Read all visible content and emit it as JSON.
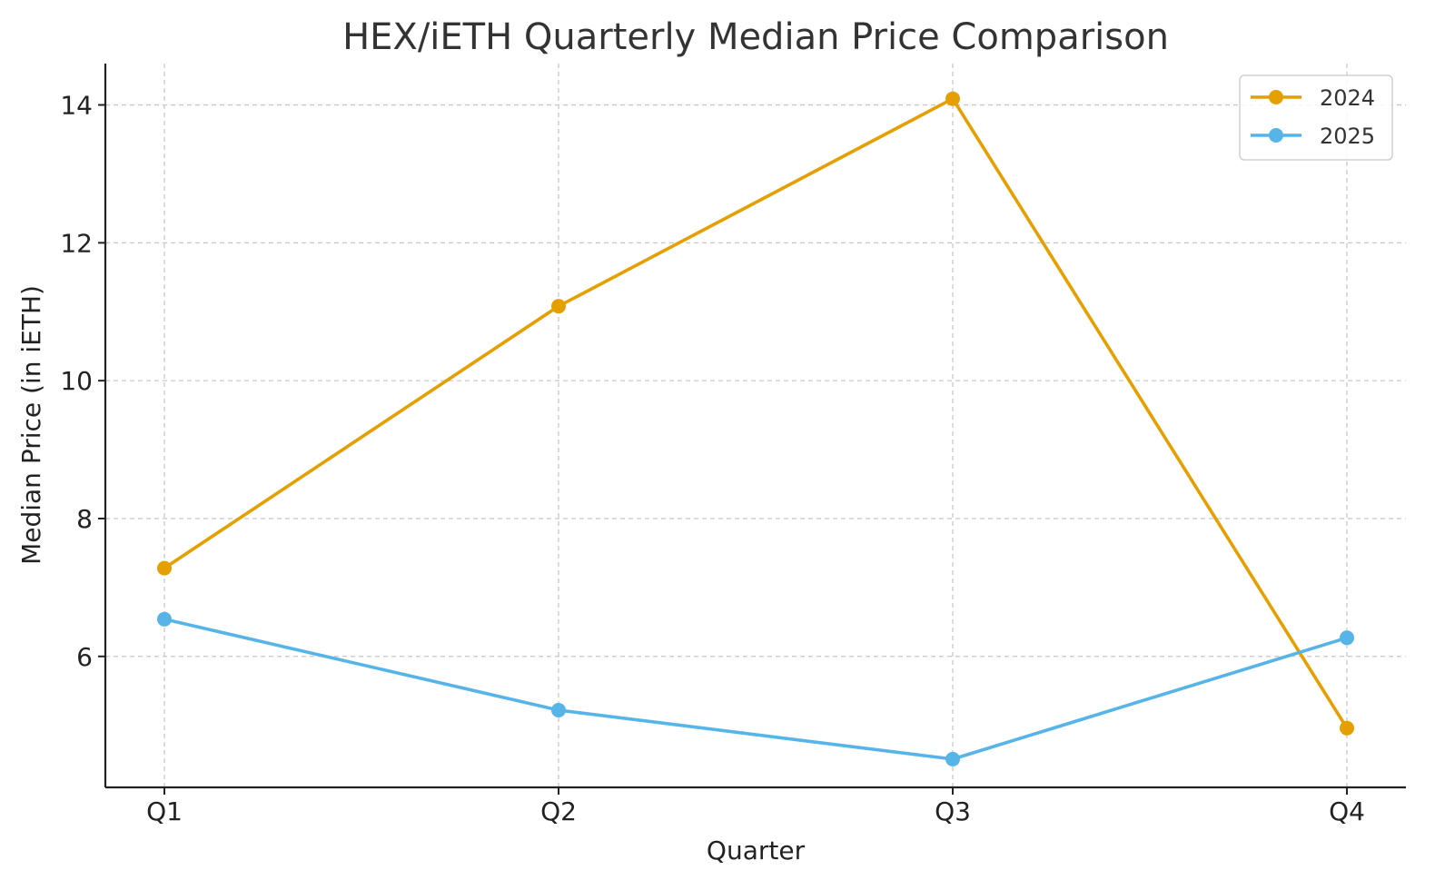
{
  "chart_data": {
    "type": "line",
    "title": "HEX/iETH Quarterly Median Price Comparison",
    "xlabel": "Quarter",
    "ylabel": "Median Price (in iETH)",
    "categories": [
      "Q1",
      "Q2",
      "Q3",
      "Q4"
    ],
    "ylim": [
      4.1,
      14.6
    ],
    "yticks": [
      6,
      8,
      10,
      12,
      14
    ],
    "grid": true,
    "legend": "top-right",
    "series": [
      {
        "name": "2024",
        "color": "#E69F00",
        "values": [
          7.28,
          11.08,
          14.09,
          4.96
        ]
      },
      {
        "name": "2025",
        "color": "#56B4E9",
        "values": [
          6.54,
          5.22,
          4.51,
          6.27
        ]
      }
    ]
  }
}
